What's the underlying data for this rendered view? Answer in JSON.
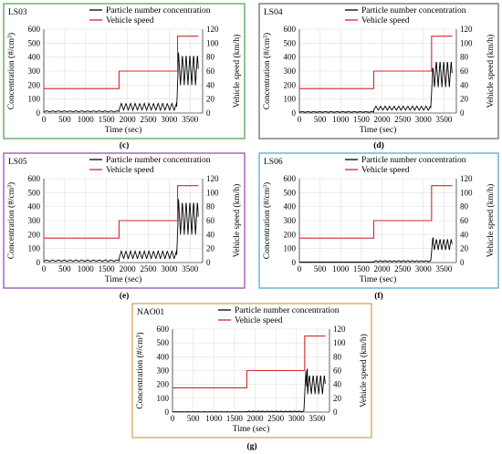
{
  "colors": {
    "concentration": "#000000",
    "speed": "#d62728",
    "grid": "#d9d9d9"
  },
  "chart_data": [
    {
      "type": "line",
      "title": "LS03",
      "subfigure": "(c)",
      "frame_color": "#43a047",
      "xlabel": "Time (sec)",
      "ylabel": "Concentration (#/cm³)",
      "y2label": "Vehicle speed (km/h)",
      "xlim": [
        0,
        3800
      ],
      "ylim": [
        0,
        600
      ],
      "y2lim": [
        0,
        120
      ],
      "x_ticks": [
        "0",
        "500",
        "1000",
        "1500",
        "2000",
        "2500",
        "3000",
        "3500"
      ],
      "y_ticks": [
        "0",
        "100",
        "200",
        "300",
        "400",
        "500",
        "600"
      ],
      "y2_ticks": [
        "0",
        "20",
        "40",
        "60",
        "80",
        "100",
        "120"
      ],
      "legend": [
        "Particle number concentration",
        "Vehicle speed"
      ],
      "series": [
        {
          "name": "Particle number concentration",
          "axis": "left",
          "segments": [
            {
              "x": [
                0,
                1800
              ],
              "base": 12,
              "amp": 4,
              "period": 140
            },
            {
              "x": [
                1800,
                3180
              ],
              "base": 45,
              "amp": 25,
              "period": 110
            },
            {
              "x": [
                3180,
                3700
              ],
              "base": 310,
              "amp": 110,
              "period": 90
            }
          ],
          "spike": {
            "x": 3220,
            "y": 430
          }
        },
        {
          "name": "Vehicle speed",
          "axis": "right",
          "x": [
            0,
            1800,
            1800,
            3200,
            3200,
            3700
          ],
          "y": [
            35,
            35,
            60,
            60,
            110,
            110
          ]
        }
      ]
    },
    {
      "type": "line",
      "title": "LS04",
      "subfigure": "(d)",
      "frame_color": "#616161",
      "xlabel": "Time (sec)",
      "ylabel": "Concentration (#/cm³)",
      "y2label": "Vehicle speed (km/h)",
      "xlim": [
        0,
        3800
      ],
      "ylim": [
        0,
        600
      ],
      "y2lim": [
        0,
        120
      ],
      "x_ticks": [
        "0",
        "500",
        "1000",
        "1500",
        "2000",
        "2500",
        "3000",
        "3500"
      ],
      "y_ticks": [
        "0",
        "100",
        "200",
        "300",
        "400",
        "500",
        "600"
      ],
      "y2_ticks": [
        "0",
        "20",
        "40",
        "60",
        "80",
        "100",
        "120"
      ],
      "legend": [
        "Particle number concentration",
        "Vehicle speed"
      ],
      "series": [
        {
          "name": "Particle number concentration",
          "axis": "left",
          "segments": [
            {
              "x": [
                0,
                1800
              ],
              "base": 8,
              "amp": 2,
              "period": 140
            },
            {
              "x": [
                1800,
                3180
              ],
              "base": 35,
              "amp": 15,
              "period": 110
            },
            {
              "x": [
                3180,
                3700
              ],
              "base": 280,
              "amp": 95,
              "period": 90
            }
          ],
          "spike": {
            "x": 3230,
            "y": 320
          }
        },
        {
          "name": "Vehicle speed",
          "axis": "right",
          "x": [
            0,
            1800,
            1800,
            3200,
            3200,
            3700
          ],
          "y": [
            35,
            35,
            60,
            60,
            110,
            110
          ]
        }
      ]
    },
    {
      "type": "line",
      "title": "LS05",
      "subfigure": "(e)",
      "frame_color": "#8e44ad",
      "xlabel": "Time (sec)",
      "ylabel": "Concentration (#/cm³)",
      "y2label": "Vehicle speed (km/h)",
      "xlim": [
        0,
        3800
      ],
      "ylim": [
        0,
        600
      ],
      "y2lim": [
        0,
        120
      ],
      "x_ticks": [
        "0",
        "500",
        "1000",
        "1500",
        "2000",
        "2500",
        "3000",
        "3500"
      ],
      "y_ticks": [
        "0",
        "100",
        "200",
        "300",
        "400",
        "500",
        "600"
      ],
      "y2_ticks": [
        "0",
        "20",
        "40",
        "60",
        "80",
        "100",
        "120"
      ],
      "legend": [
        "Particle number concentration",
        "Vehicle speed"
      ],
      "series": [
        {
          "name": "Particle number concentration",
          "axis": "left",
          "segments": [
            {
              "x": [
                0,
                1800
              ],
              "base": 14,
              "amp": 5,
              "period": 140
            },
            {
              "x": [
                1800,
                3180
              ],
              "base": 55,
              "amp": 28,
              "period": 110
            },
            {
              "x": [
                3180,
                3700
              ],
              "base": 320,
              "amp": 120,
              "period": 90
            }
          ],
          "spike": {
            "x": 3220,
            "y": 450
          }
        },
        {
          "name": "Vehicle speed",
          "axis": "right",
          "x": [
            0,
            1800,
            1800,
            3200,
            3200,
            3700
          ],
          "y": [
            35,
            35,
            60,
            60,
            110,
            110
          ]
        }
      ]
    },
    {
      "type": "line",
      "title": "LS06",
      "subfigure": "(f)",
      "frame_color": "#4aa3c8",
      "xlabel": "Time (sec)",
      "ylabel": "Concentration (#/cm³)",
      "y2label": "Vehicle speed (km/h)",
      "xlim": [
        0,
        3800
      ],
      "ylim": [
        0,
        600
      ],
      "y2lim": [
        0,
        120
      ],
      "x_ticks": [
        "0",
        "500",
        "1000",
        "1500",
        "2000",
        "2500",
        "3000",
        "3500"
      ],
      "y_ticks": [
        "0",
        "100",
        "200",
        "300",
        "400",
        "500",
        "600"
      ],
      "y2_ticks": [
        "0",
        "20",
        "40",
        "60",
        "80",
        "100",
        "120"
      ],
      "legend": [
        "Particle number concentration",
        "Vehicle speed"
      ],
      "series": [
        {
          "name": "Particle number concentration",
          "axis": "left",
          "segments": [
            {
              "x": [
                0,
                1800
              ],
              "base": 4,
              "amp": 1,
              "period": 140
            },
            {
              "x": [
                1800,
                3180
              ],
              "base": 10,
              "amp": 4,
              "period": 110
            },
            {
              "x": [
                3180,
                3700
              ],
              "base": 130,
              "amp": 40,
              "period": 90
            }
          ],
          "spike": {
            "x": 3240,
            "y": 180
          }
        },
        {
          "name": "Vehicle speed",
          "axis": "right",
          "x": [
            0,
            1800,
            1800,
            3200,
            3200,
            3700
          ],
          "y": [
            35,
            35,
            60,
            60,
            110,
            110
          ]
        }
      ]
    },
    {
      "type": "line",
      "title": "NAO01",
      "subfigure": "(g)",
      "frame_color": "#c8a24a",
      "xlabel": "Time (sec)",
      "ylabel": "Concentration (#/cm³)",
      "y2label": "Vehicle speed (km/h)",
      "xlim": [
        0,
        3800
      ],
      "ylim": [
        0,
        600
      ],
      "y2lim": [
        0,
        120
      ],
      "x_ticks": [
        "0",
        "500",
        "1000",
        "1500",
        "2000",
        "2500",
        "3000",
        "3500"
      ],
      "y_ticks": [
        "0",
        "100",
        "200",
        "300",
        "400",
        "500",
        "600"
      ],
      "y2_ticks": [
        "0",
        "20",
        "40",
        "60",
        "80",
        "100",
        "120"
      ],
      "legend": [
        "Particle number concentration",
        "Vehicle speed"
      ],
      "series": [
        {
          "name": "Particle number concentration",
          "axis": "left",
          "segments": [
            {
              "x": [
                0,
                1800
              ],
              "base": 2,
              "amp": 0.5,
              "period": 140
            },
            {
              "x": [
                1800,
                3180
              ],
              "base": 5,
              "amp": 1.5,
              "period": 110
            },
            {
              "x": [
                3180,
                3700
              ],
              "base": 200,
              "amp": 70,
              "period": 90
            }
          ],
          "spike": {
            "x": 3260,
            "y": 310
          }
        },
        {
          "name": "Vehicle speed",
          "axis": "right",
          "x": [
            0,
            1800,
            1800,
            3200,
            3200,
            3700
          ],
          "y": [
            35,
            35,
            60,
            60,
            110,
            110
          ]
        }
      ]
    }
  ]
}
